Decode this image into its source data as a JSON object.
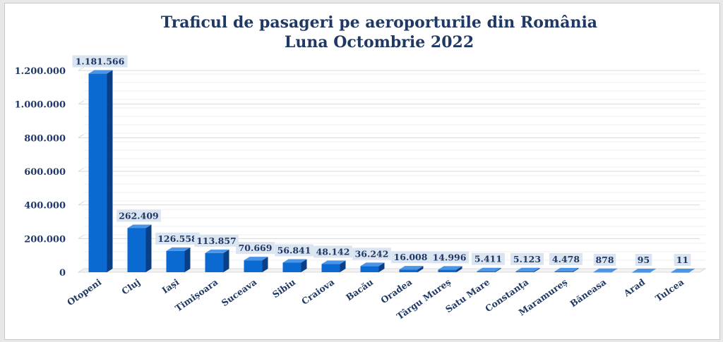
{
  "chart_data": {
    "type": "bar",
    "title": "Traficul de pasageri pe aeroporturile din România",
    "subtitle": "Luna Octombrie 2022",
    "categories": [
      "Otopeni",
      "Cluj",
      "Iași",
      "Timișoara",
      "Suceava",
      "Sibiu",
      "Craiova",
      "Bacău",
      "Oradea",
      "Târgu Mureș",
      "Satu Mare",
      "Constanța",
      "Maramureș",
      "Băneasa",
      "Arad",
      "Tulcea"
    ],
    "values": [
      1181566,
      262409,
      126558,
      113857,
      70669,
      56841,
      48142,
      36242,
      16008,
      14996,
      5411,
      5123,
      4478,
      878,
      95,
      11
    ],
    "data_labels": [
      "1.181.566",
      "262.409",
      "126.558",
      "113.857",
      "70.669",
      "56.841",
      "48.142",
      "36.242",
      "16.008",
      "14.996",
      "5.411",
      "5.123",
      "4.478",
      "878",
      "95",
      "11"
    ],
    "ylim": [
      0,
      1200000
    ],
    "yticks": [
      0,
      200000,
      400000,
      600000,
      800000,
      1000000,
      1200000
    ],
    "ytick_labels": [
      "0",
      "200.000",
      "400.000",
      "600.000",
      "800.000",
      "1.000.000",
      "1.200.000"
    ],
    "xlabel": "",
    "ylabel": "",
    "grid": true,
    "colors": {
      "bar_front": "#0a6ad1",
      "bar_side": "#0a3f86",
      "bar_top": "#4a95e6",
      "label_bg": "#dbe5f1",
      "text": "#1f3864",
      "grid": "#d9d9d9"
    }
  }
}
